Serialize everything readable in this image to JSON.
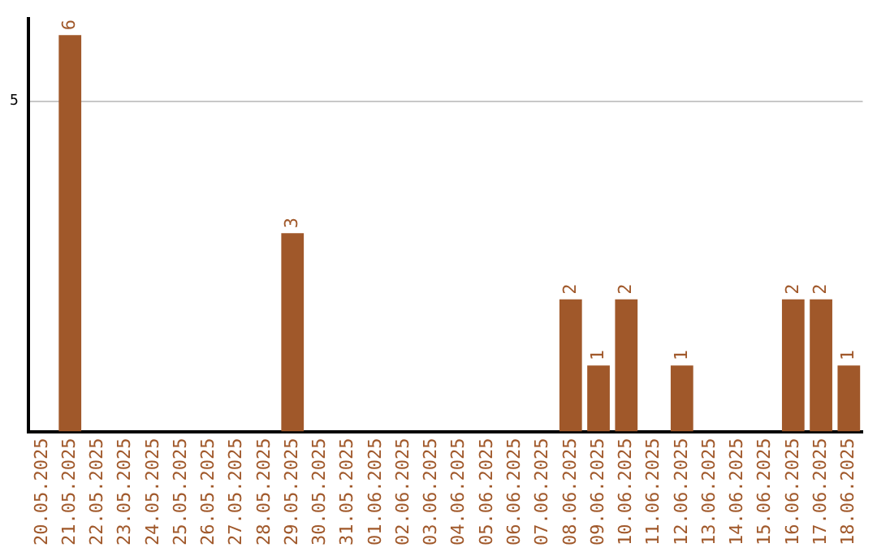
{
  "chart_data": {
    "type": "bar",
    "categories": [
      "20.05.2025",
      "21.05.2025",
      "22.05.2025",
      "23.05.2025",
      "24.05.2025",
      "25.05.2025",
      "26.05.2025",
      "27.05.2025",
      "28.05.2025",
      "29.05.2025",
      "30.05.2025",
      "31.05.2025",
      "01.06.2025",
      "02.06.2025",
      "03.06.2025",
      "04.06.2025",
      "05.06.2025",
      "06.06.2025",
      "07.06.2025",
      "08.06.2025",
      "09.06.2025",
      "10.06.2025",
      "11.06.2025",
      "12.06.2025",
      "13.06.2025",
      "14.06.2025",
      "15.06.2025",
      "16.06.2025",
      "17.06.2025",
      "18.06.2025"
    ],
    "values": [
      0,
      6,
      0,
      0,
      0,
      0,
      0,
      0,
      0,
      3,
      0,
      0,
      0,
      0,
      0,
      0,
      0,
      0,
      0,
      2,
      1,
      2,
      0,
      1,
      0,
      0,
      0,
      2,
      2,
      1
    ],
    "value_labels": [
      null,
      "6",
      null,
      null,
      null,
      null,
      null,
      null,
      null,
      "3",
      null,
      null,
      null,
      null,
      null,
      null,
      null,
      null,
      null,
      "2",
      "1",
      "2",
      null,
      "1",
      null,
      null,
      null,
      "2",
      "2",
      "1"
    ],
    "color": "#a0582a",
    "ylim": [
      0,
      6.25
    ],
    "yticks": [
      5
    ],
    "grid": "y",
    "legend": false
  }
}
